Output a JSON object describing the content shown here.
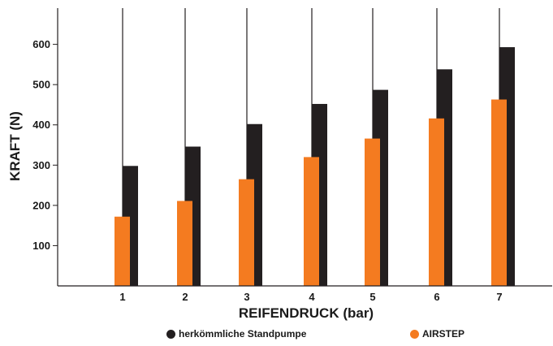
{
  "chart_data": {
    "type": "bar",
    "xlabel": "REIFENDRUCK (bar)",
    "ylabel": "KRAFT (N)",
    "categories": [
      "1",
      "2",
      "3",
      "4",
      "5",
      "6",
      "7"
    ],
    "yticks": [
      "100",
      "200",
      "300",
      "400",
      "500",
      "600"
    ],
    "ylim": [
      0,
      690
    ],
    "grid": "vertical",
    "legend_position": "bottom",
    "series": [
      {
        "name": "AIRSTEP",
        "color": "#f47b20",
        "values": [
          172,
          211,
          265,
          320,
          366,
          416,
          463
        ]
      },
      {
        "name": "herkömmliche Standpumpe",
        "color": "#231f20",
        "values": [
          298,
          346,
          402,
          452,
          487,
          538,
          593
        ]
      }
    ]
  },
  "legend": {
    "items": [
      {
        "label": "herkömmliche Standpumpe",
        "color": "#231f20"
      },
      {
        "label": "AIRSTEP",
        "color": "#f47b20"
      }
    ]
  }
}
